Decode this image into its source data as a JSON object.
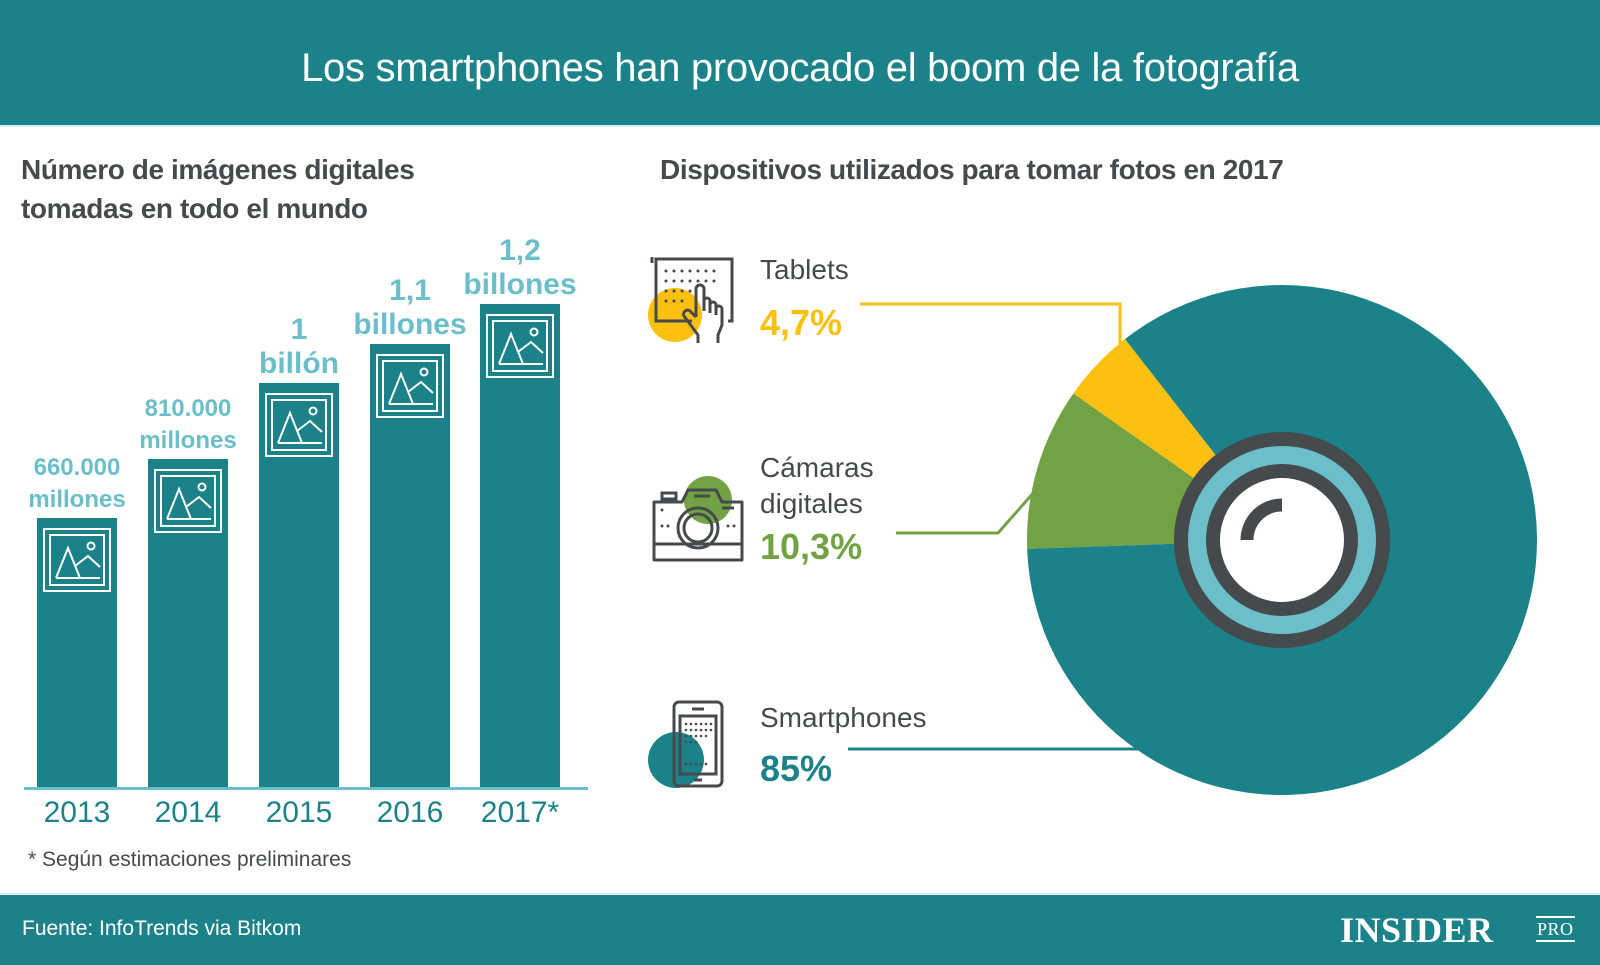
{
  "header": {
    "title": "Los smartphones han provocado el boom de la fotografía"
  },
  "left_panel": {
    "title_line1": "Número de imágenes digitales",
    "title_line2": "tomadas en todo el mundo",
    "footnote": "* Según estimaciones preliminares"
  },
  "right_panel": {
    "title": "Dispositivos utilizados para tomar fotos en 2017"
  },
  "devices": [
    {
      "name": "Tablets",
      "pct_label": "4,7%",
      "icon": "tablet-touch-icon",
      "color": "#fcc010"
    },
    {
      "name_line1": "Cámaras",
      "name_line2": "digitales",
      "pct_label": "10,3%",
      "icon": "camera-icon",
      "color": "#73a244"
    },
    {
      "name": "Smartphones",
      "pct_label": "85%",
      "icon": "smartphone-icon",
      "color": "#1c8289"
    }
  ],
  "footer": {
    "source": "Fuente: InfoTrends via Bitkom",
    "logo_main": "INSIDER",
    "logo_sub": "PRO"
  },
  "colors": {
    "teal": "#1c8289",
    "light_teal": "#6bbfca",
    "yellow": "#fcc010",
    "green": "#73a244",
    "dark": "#454a4c"
  },
  "chart_data": [
    {
      "type": "bar",
      "title": "Número de imágenes digitales tomadas en todo el mundo",
      "categories": [
        "2013",
        "2014",
        "2015",
        "2016",
        "2017*"
      ],
      "values": [
        660000000000,
        810000000000,
        1000000000000,
        1100000000000,
        1200000000000
      ],
      "value_labels": [
        {
          "line1": "660.000",
          "line2": "millones"
        },
        {
          "line1": "810.000",
          "line2": "millones"
        },
        {
          "line1": "1",
          "line2": "billón"
        },
        {
          "line1": "1,1",
          "line2": "billones"
        },
        {
          "line1": "1,2",
          "line2": "billones"
        }
      ],
      "xlabel": "",
      "ylabel": "",
      "ylim": [
        0,
        1200000000000
      ],
      "grid": false
    },
    {
      "type": "pie",
      "title": "Dispositivos utilizados para tomar fotos en 2017",
      "categories": [
        "Tablets",
        "Cámaras digitales",
        "Smartphones"
      ],
      "values": [
        4.7,
        10.3,
        85
      ],
      "unit": "%"
    }
  ]
}
